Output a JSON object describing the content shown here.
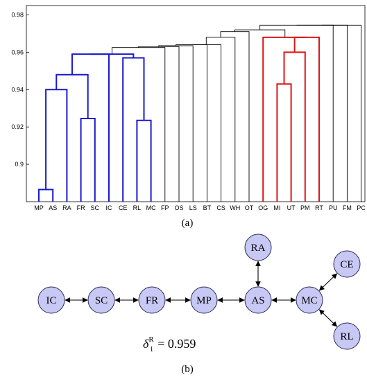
{
  "chart_data": {
    "type": "dendrogram",
    "panel_caption": "(a)",
    "ylim": [
      0.88,
      0.985
    ],
    "yticks": [
      0.9,
      0.92,
      0.94,
      0.96,
      0.98
    ],
    "ytick_labels": [
      "0.9",
      "0.92",
      "0.94",
      "0.96",
      "0.98"
    ],
    "leaves": [
      "MP",
      "AS",
      "RA",
      "FR",
      "SC",
      "IC",
      "CE",
      "RL",
      "MC",
      "FP",
      "OS",
      "LS",
      "BT",
      "CS",
      "WH",
      "OT",
      "OG",
      "MI",
      "UT",
      "PM",
      "RT",
      "PU",
      "FM",
      "PC"
    ],
    "merges": [
      {
        "a": "MP",
        "b": "AS",
        "height": 0.8865,
        "color": "blue"
      },
      {
        "a": "FR",
        "b": "SC",
        "height": 0.9245,
        "color": "blue"
      },
      {
        "a": "RL",
        "b": "MC",
        "height": 0.9235,
        "color": "blue"
      },
      {
        "a": 0,
        "b": "RA",
        "height": 0.94,
        "color": "blue"
      },
      {
        "a": 3,
        "b": 1,
        "height": 0.948,
        "color": "blue"
      },
      {
        "a": "CE",
        "b": 2,
        "height": 0.957,
        "color": "blue"
      },
      {
        "a": 4,
        "b": "IC",
        "height": 0.959,
        "color": "blue"
      },
      {
        "a": 6,
        "b": 5,
        "height": 0.959,
        "color": "blue"
      },
      {
        "a": "MI",
        "b": "UT",
        "height": 0.943,
        "color": "red"
      },
      {
        "a": 8,
        "b": "PM",
        "height": 0.96,
        "color": "red"
      },
      {
        "a": 9,
        "b": "RT",
        "height": 0.968,
        "color": "red"
      },
      {
        "a": "OG",
        "b": 10,
        "height": 0.968,
        "color": "red"
      },
      {
        "a": 7,
        "b": "FP",
        "height": 0.9625,
        "color": "black"
      },
      {
        "a": 12,
        "b": "OS",
        "height": 0.963,
        "color": "black"
      },
      {
        "a": 13,
        "b": "LS",
        "height": 0.9635,
        "color": "black"
      },
      {
        "a": 14,
        "b": "BT",
        "height": 0.964,
        "color": "black"
      },
      {
        "a": 15,
        "b": "CS",
        "height": 0.964,
        "color": "black"
      },
      {
        "a": 16,
        "b": "WH",
        "height": 0.968,
        "color": "black"
      },
      {
        "a": 17,
        "b": "OT",
        "height": 0.971,
        "color": "black"
      },
      {
        "a": 18,
        "b": 11,
        "height": 0.972,
        "color": "black"
      },
      {
        "a": 19,
        "b": "PU",
        "height": 0.9745,
        "color": "black"
      },
      {
        "a": 20,
        "b": "FM",
        "height": 0.9745,
        "color": "black"
      },
      {
        "a": 21,
        "b": "PC",
        "height": 0.9745,
        "color": "black"
      }
    ],
    "colors": {
      "blue": "#1a1acc",
      "red": "#e01515",
      "black": "#000000"
    }
  },
  "graph": {
    "panel_caption": "(b)",
    "node_fill": "#c8c8f5",
    "node_stroke": "#2a2a55",
    "nodes": [
      {
        "id": "IC",
        "label": "IC"
      },
      {
        "id": "SC",
        "label": "SC"
      },
      {
        "id": "FR",
        "label": "FR"
      },
      {
        "id": "MP",
        "label": "MP"
      },
      {
        "id": "AS",
        "label": "AS"
      },
      {
        "id": "RA",
        "label": "RA"
      },
      {
        "id": "MC",
        "label": "MC"
      },
      {
        "id": "CE",
        "label": "CE"
      },
      {
        "id": "RL",
        "label": "RL"
      }
    ],
    "edges": [
      [
        "IC",
        "SC"
      ],
      [
        "SC",
        "FR"
      ],
      [
        "FR",
        "MP"
      ],
      [
        "MP",
        "AS"
      ],
      [
        "AS",
        "RA"
      ],
      [
        "AS",
        "MC"
      ],
      [
        "MC",
        "CE"
      ],
      [
        "MC",
        "RL"
      ]
    ],
    "formula_symbol": "δ",
    "formula_sub": "1",
    "formula_sup": "R",
    "formula_value": "= 0.959"
  }
}
